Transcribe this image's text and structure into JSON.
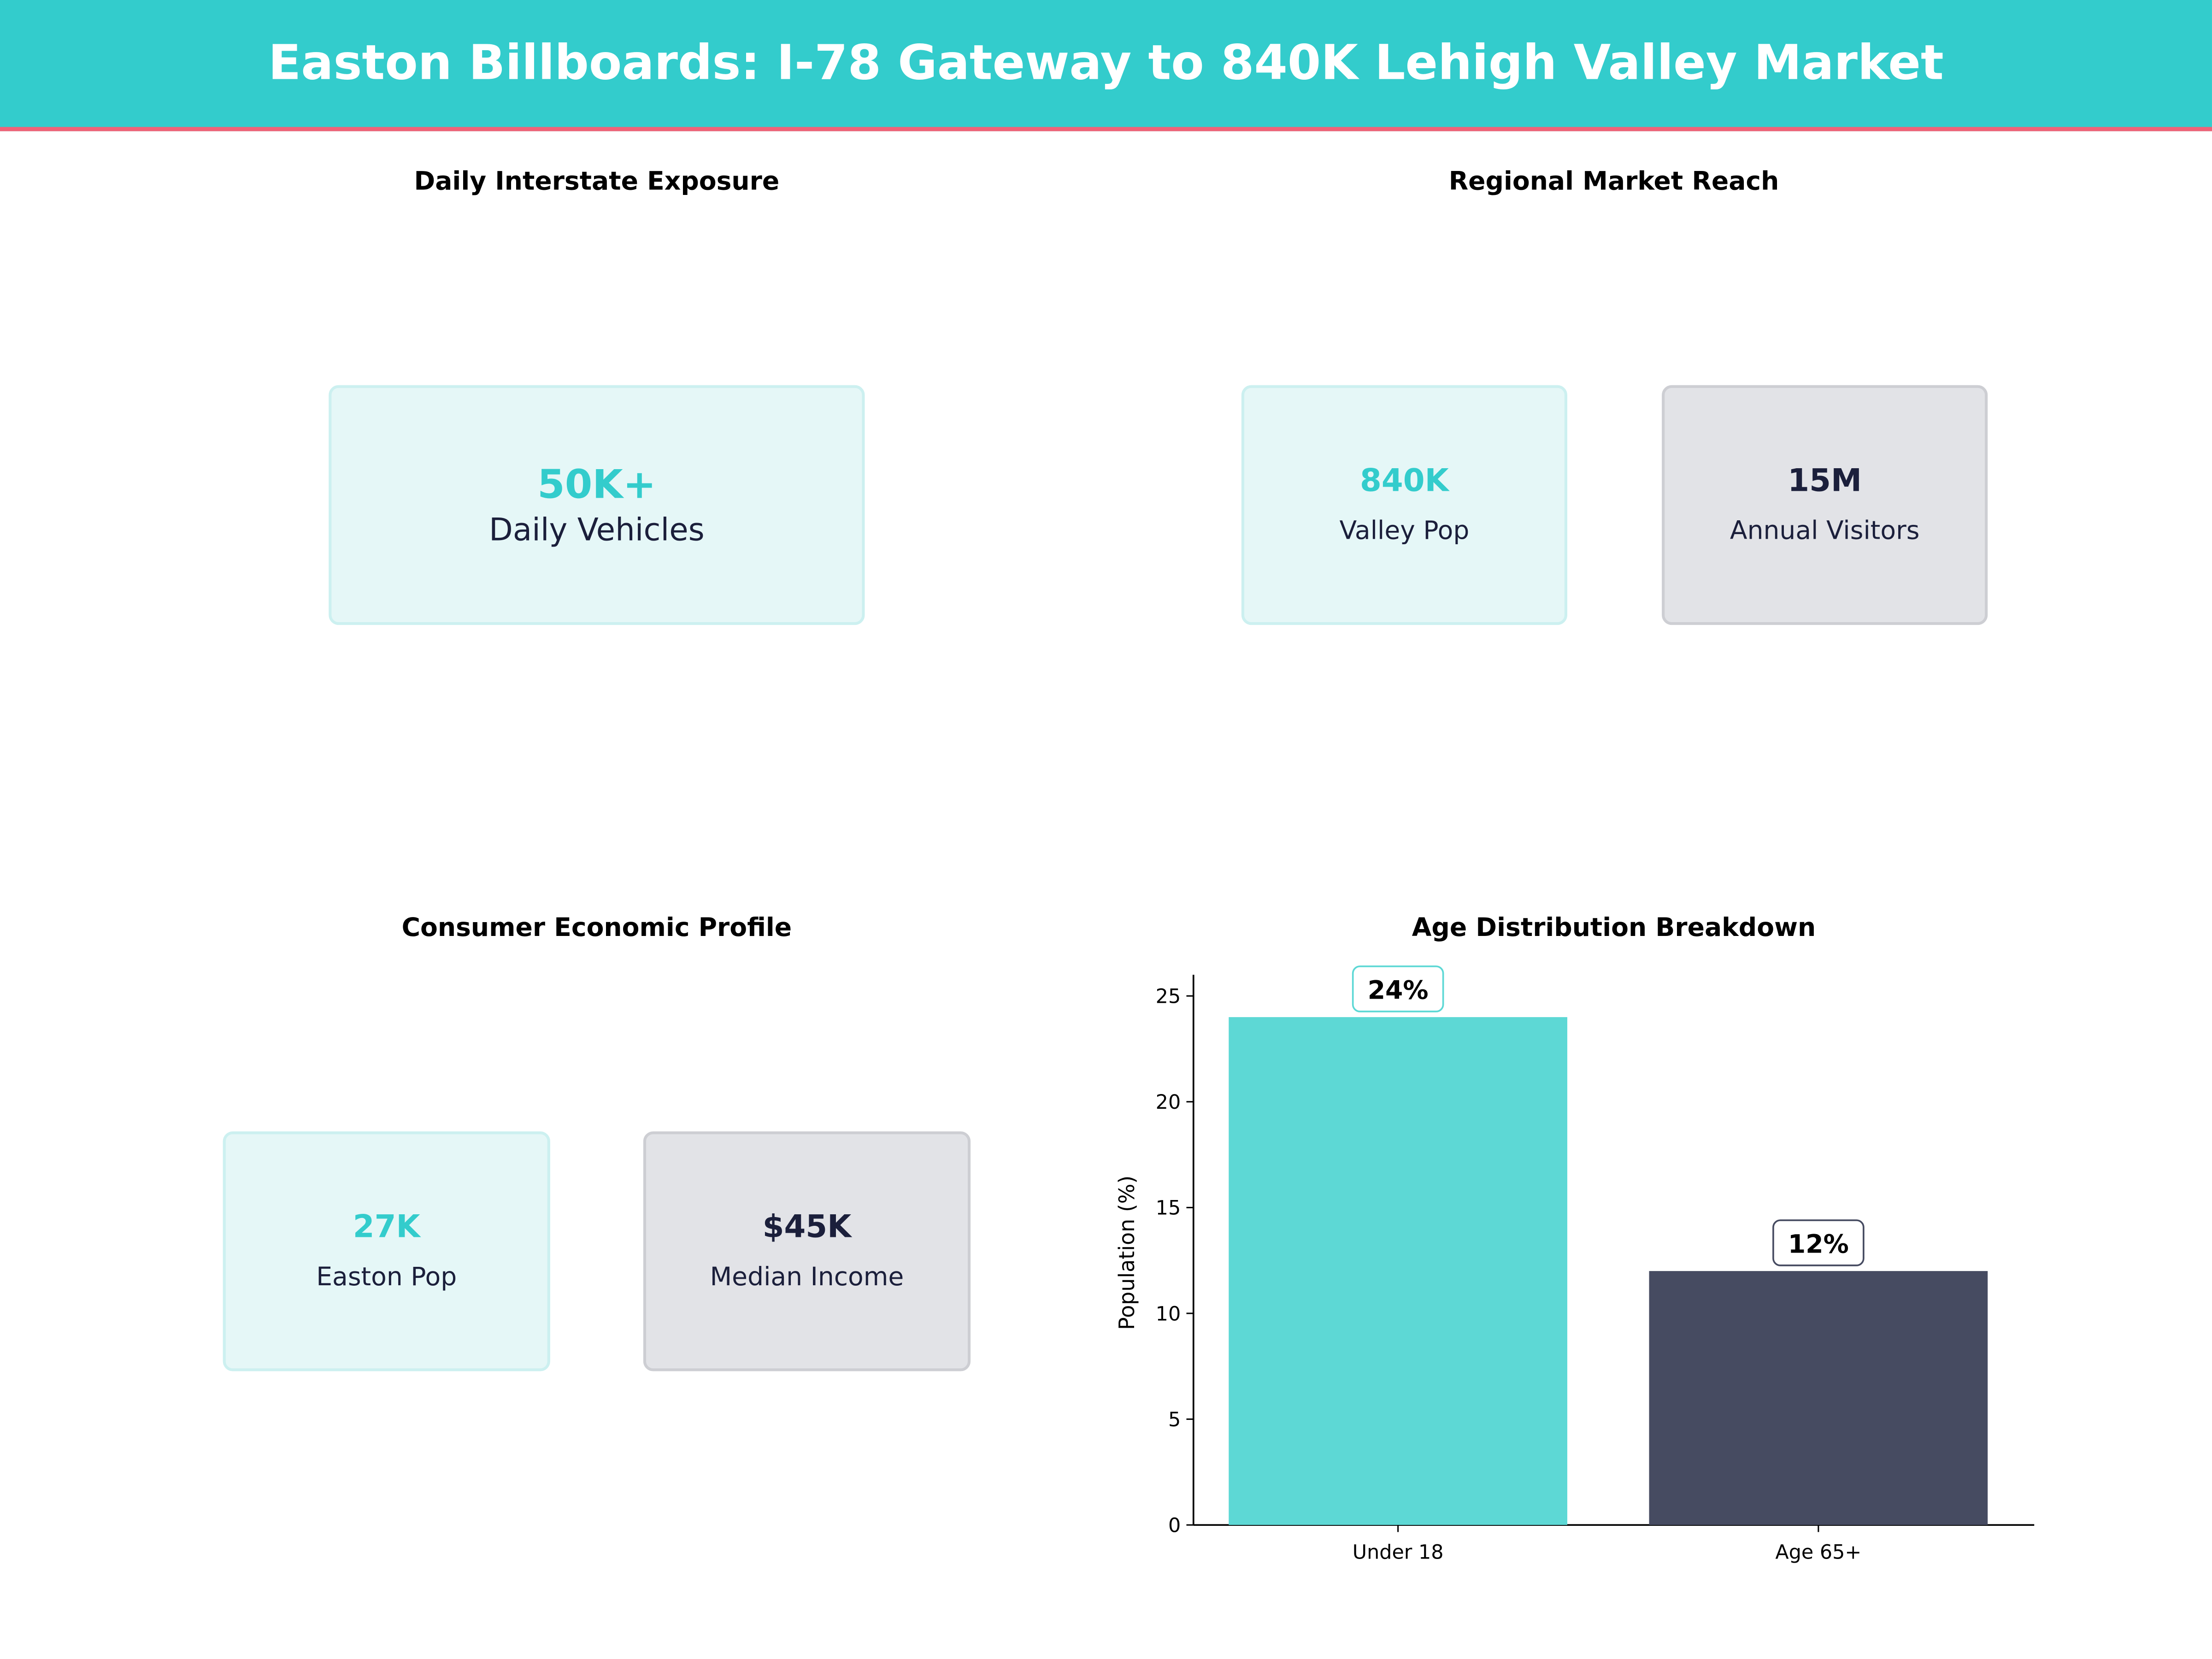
{
  "header": {
    "title": "Easton Billboards: I-78 Gateway to 840K Lehigh Valley Market"
  },
  "colors": {
    "accent": "#33CCCC",
    "stripe": "#F06277",
    "dark": "#464B61"
  },
  "panels": {
    "exposure": {
      "title": "Daily Interstate Exposure",
      "cards": [
        {
          "value": "50K+",
          "label": "Daily Vehicles"
        }
      ]
    },
    "reach": {
      "title": "Regional Market Reach",
      "cards": [
        {
          "value": "840K",
          "label": "Valley Pop"
        },
        {
          "value": "15M",
          "label": "Annual Visitors"
        }
      ]
    },
    "economic": {
      "title": "Consumer Economic Profile",
      "cards": [
        {
          "value": "27K",
          "label": "Easton Pop"
        },
        {
          "value": "$45K",
          "label": "Median Income"
        }
      ]
    }
  },
  "chart_data": {
    "type": "bar",
    "title": "Age Distribution Breakdown",
    "categories": [
      "Under 18",
      "Age 65+"
    ],
    "values": [
      24,
      12
    ],
    "data_labels": [
      "24%",
      "12%"
    ],
    "colors": [
      "#5DD8D5",
      "#464B61"
    ],
    "xlabel": "",
    "ylabel": "Population (%)",
    "ylim": [
      0,
      26
    ],
    "yticks": [
      0,
      5,
      10,
      15,
      20,
      25
    ],
    "grid": false
  }
}
